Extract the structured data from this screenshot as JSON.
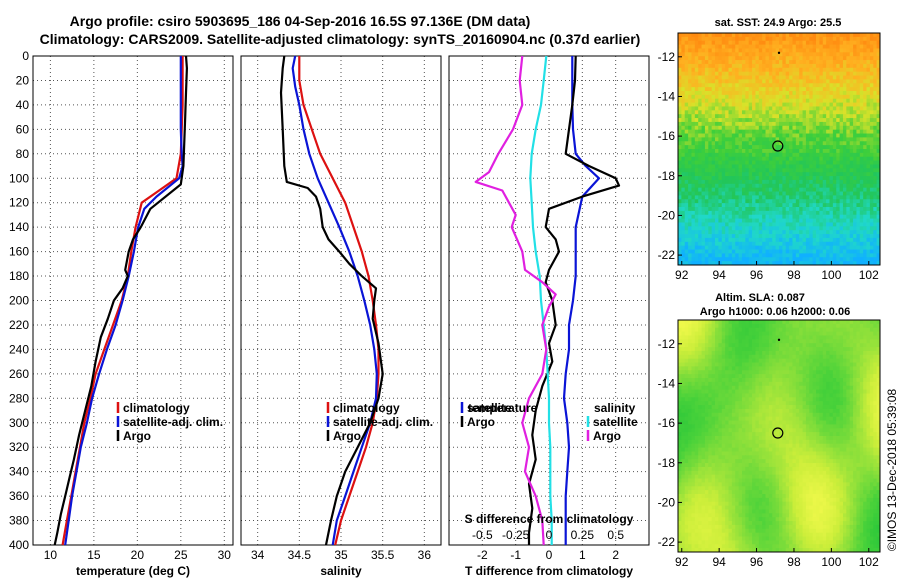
{
  "header": {
    "title_line1": "Argo profile: csiro 5903695_186 04-Sep-2016 16.5S 97.136E (DM data)",
    "title_line2": "Climatology: CARS2009. Satellite-adjusted climatology: synTS_20160904.nc (0.37d earlier)"
  },
  "colors": {
    "climatology": "#dd1111",
    "satellite": "#0a14d6",
    "argo": "#000000",
    "s_satellite": "#22e0e6",
    "s_argo": "#e020e0"
  },
  "depth_axis": {
    "ylim": [
      0,
      400
    ],
    "ticks": [
      0,
      20,
      40,
      60,
      80,
      100,
      120,
      140,
      160,
      180,
      200,
      220,
      240,
      260,
      280,
      300,
      320,
      340,
      360,
      380,
      400
    ]
  },
  "chart_data": [
    {
      "type": "line",
      "name": "temperature-panel",
      "xlabel": "temperature (deg C)",
      "xlim": [
        8,
        31
      ],
      "xticks": [
        10,
        15,
        20,
        25,
        30
      ],
      "legend": [
        "climatology",
        "satellite-adj. clim.",
        "Argo"
      ],
      "series": [
        {
          "name": "climatology",
          "points": [
            [
              25.2,
              0
            ],
            [
              25.2,
              20
            ],
            [
              25.2,
              40
            ],
            [
              25.1,
              60
            ],
            [
              25.0,
              80
            ],
            [
              24.5,
              100
            ],
            [
              22.5,
              110
            ],
            [
              20.5,
              120
            ],
            [
              19.8,
              140
            ],
            [
              19.3,
              160
            ],
            [
              18.9,
              180
            ],
            [
              18.2,
              200
            ],
            [
              17.2,
              220
            ],
            [
              16.2,
              240
            ],
            [
              15.2,
              260
            ],
            [
              14.6,
              280
            ],
            [
              13.9,
              300
            ],
            [
              13.4,
              320
            ],
            [
              12.9,
              340
            ],
            [
              12.4,
              360
            ],
            [
              11.9,
              380
            ],
            [
              11.4,
              400
            ]
          ]
        },
        {
          "name": "satellite-adj. clim.",
          "points": [
            [
              25.0,
              0
            ],
            [
              25.0,
              20
            ],
            [
              25.0,
              40
            ],
            [
              25.0,
              60
            ],
            [
              25.1,
              80
            ],
            [
              25.2,
              90
            ],
            [
              24.8,
              100
            ],
            [
              22.2,
              115
            ],
            [
              20.8,
              125
            ],
            [
              20.1,
              140
            ],
            [
              19.6,
              160
            ],
            [
              19.0,
              180
            ],
            [
              18.3,
              200
            ],
            [
              17.5,
              220
            ],
            [
              16.5,
              240
            ],
            [
              15.6,
              260
            ],
            [
              14.8,
              280
            ],
            [
              14.2,
              300
            ],
            [
              13.5,
              320
            ],
            [
              13.0,
              340
            ],
            [
              12.5,
              360
            ],
            [
              12.1,
              380
            ],
            [
              11.7,
              400
            ]
          ]
        },
        {
          "name": "Argo",
          "points": [
            [
              25.6,
              0
            ],
            [
              25.7,
              10
            ],
            [
              25.6,
              30
            ],
            [
              25.5,
              50
            ],
            [
              25.4,
              70
            ],
            [
              25.3,
              90
            ],
            [
              25.0,
              105
            ],
            [
              21.5,
              125
            ],
            [
              20.4,
              140
            ],
            [
              19.5,
              150
            ],
            [
              19.0,
              160
            ],
            [
              18.6,
              175
            ],
            [
              18.9,
              180
            ],
            [
              18.3,
              190
            ],
            [
              17.3,
              200
            ],
            [
              16.6,
              215
            ],
            [
              15.8,
              230
            ],
            [
              15.2,
              250
            ],
            [
              14.7,
              270
            ],
            [
              14.0,
              290
            ],
            [
              13.3,
              310
            ],
            [
              12.7,
              330
            ],
            [
              12.2,
              345
            ],
            [
              11.7,
              360
            ],
            [
              11.2,
              375
            ],
            [
              10.8,
              390
            ],
            [
              10.5,
              400
            ]
          ]
        }
      ]
    },
    {
      "type": "line",
      "name": "salinity-panel",
      "xlabel": "salinity",
      "xlim": [
        33.8,
        36.2
      ],
      "xticks": [
        34,
        34.5,
        35,
        35.5,
        36
      ],
      "legend": [
        "climatology",
        "satellite-adj. clim.",
        "Argo"
      ],
      "series": [
        {
          "name": "climatology",
          "points": [
            [
              34.5,
              0
            ],
            [
              34.5,
              20
            ],
            [
              34.55,
              40
            ],
            [
              34.65,
              60
            ],
            [
              34.75,
              80
            ],
            [
              34.9,
              100
            ],
            [
              35.05,
              120
            ],
            [
              35.15,
              140
            ],
            [
              35.25,
              160
            ],
            [
              35.33,
              180
            ],
            [
              35.38,
              200
            ],
            [
              35.42,
              220
            ],
            [
              35.45,
              240
            ],
            [
              35.45,
              260
            ],
            [
              35.43,
              280
            ],
            [
              35.38,
              300
            ],
            [
              35.3,
              320
            ],
            [
              35.2,
              340
            ],
            [
              35.1,
              360
            ],
            [
              35.0,
              380
            ],
            [
              34.93,
              400
            ]
          ]
        },
        {
          "name": "satellite-adj. clim.",
          "points": [
            [
              34.45,
              0
            ],
            [
              34.42,
              10
            ],
            [
              34.45,
              25
            ],
            [
              34.5,
              40
            ],
            [
              34.55,
              60
            ],
            [
              34.62,
              80
            ],
            [
              34.72,
              100
            ],
            [
              34.85,
              120
            ],
            [
              34.98,
              140
            ],
            [
              35.1,
              160
            ],
            [
              35.2,
              180
            ],
            [
              35.28,
              200
            ],
            [
              35.35,
              220
            ],
            [
              35.4,
              240
            ],
            [
              35.43,
              260
            ],
            [
              35.42,
              280
            ],
            [
              35.35,
              300
            ],
            [
              35.25,
              320
            ],
            [
              35.15,
              340
            ],
            [
              35.05,
              360
            ],
            [
              34.95,
              380
            ],
            [
              34.9,
              400
            ]
          ]
        },
        {
          "name": "Argo",
          "points": [
            [
              34.32,
              0
            ],
            [
              34.3,
              10
            ],
            [
              34.28,
              30
            ],
            [
              34.3,
              60
            ],
            [
              34.32,
              90
            ],
            [
              34.35,
              103
            ],
            [
              34.6,
              108
            ],
            [
              34.7,
              115
            ],
            [
              34.75,
              125
            ],
            [
              34.78,
              140
            ],
            [
              34.85,
              150
            ],
            [
              34.98,
              160
            ],
            [
              35.1,
              170
            ],
            [
              35.25,
              180
            ],
            [
              35.42,
              190
            ],
            [
              35.4,
              200
            ],
            [
              35.38,
              215
            ],
            [
              35.45,
              235
            ],
            [
              35.48,
              250
            ],
            [
              35.5,
              260
            ],
            [
              35.45,
              280
            ],
            [
              35.35,
              300
            ],
            [
              35.2,
              320
            ],
            [
              35.05,
              340
            ],
            [
              34.95,
              360
            ],
            [
              34.88,
              380
            ],
            [
              34.82,
              400
            ]
          ]
        }
      ]
    },
    {
      "type": "line",
      "name": "difference-panel",
      "xlabel": "T difference from climatology",
      "xlim": [
        -3,
        3
      ],
      "xticks": [
        -2,
        -1,
        0,
        1,
        2
      ],
      "s_axis_title": "S difference from climatology",
      "s_xticks": [
        -0.5,
        -0.25,
        0,
        0.25,
        0.5
      ],
      "legend_temperature": [
        "temperature",
        "satellite",
        "Argo"
      ],
      "legend_salinity": [
        "salinity",
        "satellite",
        "Argo"
      ],
      "series": [
        {
          "name": "T satellite",
          "points": [
            [
              0.7,
              0
            ],
            [
              0.7,
              40
            ],
            [
              0.72,
              60
            ],
            [
              0.8,
              80
            ],
            [
              1.1,
              90
            ],
            [
              1.5,
              100
            ],
            [
              1.0,
              115
            ],
            [
              0.8,
              140
            ],
            [
              0.8,
              160
            ],
            [
              0.8,
              180
            ],
            [
              0.72,
              200
            ],
            [
              0.6,
              220
            ],
            [
              0.6,
              240
            ],
            [
              0.5,
              260
            ],
            [
              0.45,
              280
            ],
            [
              0.55,
              300
            ],
            [
              0.6,
              320
            ],
            [
              0.55,
              340
            ],
            [
              0.5,
              360
            ],
            [
              0.5,
              380
            ],
            [
              0.5,
              400
            ]
          ]
        },
        {
          "name": "T Argo",
          "points": [
            [
              0.8,
              0
            ],
            [
              0.78,
              20
            ],
            [
              0.7,
              40
            ],
            [
              0.6,
              60
            ],
            [
              0.5,
              80
            ],
            [
              1.2,
              90
            ],
            [
              2.0,
              100
            ],
            [
              2.1,
              106
            ],
            [
              1.0,
              115
            ],
            [
              0.0,
              125
            ],
            [
              -0.1,
              140
            ],
            [
              0.2,
              150
            ],
            [
              0.3,
              160
            ],
            [
              0.0,
              175
            ],
            [
              -0.1,
              185
            ],
            [
              0.1,
              200
            ],
            [
              0.2,
              220
            ],
            [
              0.0,
              235
            ],
            [
              0.1,
              250
            ],
            [
              -0.2,
              270
            ],
            [
              -0.4,
              290
            ],
            [
              -0.5,
              310
            ],
            [
              -0.4,
              330
            ],
            [
              -0.6,
              350
            ],
            [
              -0.5,
              370
            ],
            [
              -0.6,
              390
            ],
            [
              -0.6,
              400
            ]
          ]
        },
        {
          "name": "S satellite",
          "points": [
            [
              -0.02,
              0
            ],
            [
              -0.04,
              20
            ],
            [
              -0.06,
              40
            ],
            [
              -0.1,
              60
            ],
            [
              -0.13,
              80
            ],
            [
              -0.14,
              100
            ],
            [
              -0.13,
              120
            ],
            [
              -0.12,
              140
            ],
            [
              -0.1,
              160
            ],
            [
              -0.07,
              180
            ],
            [
              -0.06,
              200
            ],
            [
              -0.04,
              220
            ],
            [
              -0.02,
              240
            ],
            [
              -0.01,
              260
            ],
            [
              0.0,
              280
            ],
            [
              0.0,
              300
            ],
            [
              0.01,
              320
            ],
            [
              0.01,
              340
            ],
            [
              0.01,
              360
            ],
            [
              0.02,
              380
            ],
            [
              0.02,
              400
            ]
          ]
        },
        {
          "name": "S Argo",
          "points": [
            [
              -0.2,
              0
            ],
            [
              -0.22,
              20
            ],
            [
              -0.2,
              40
            ],
            [
              -0.27,
              60
            ],
            [
              -0.38,
              80
            ],
            [
              -0.45,
              95
            ],
            [
              -0.55,
              103
            ],
            [
              -0.35,
              110
            ],
            [
              -0.3,
              120
            ],
            [
              -0.25,
              130
            ],
            [
              -0.28,
              140
            ],
            [
              -0.2,
              160
            ],
            [
              -0.18,
              175
            ],
            [
              -0.05,
              185
            ],
            [
              0.05,
              195
            ],
            [
              0.0,
              205
            ],
            [
              -0.05,
              220
            ],
            [
              -0.02,
              240
            ],
            [
              -0.05,
              260
            ],
            [
              -0.15,
              280
            ],
            [
              -0.2,
              300
            ],
            [
              -0.15,
              320
            ],
            [
              -0.18,
              340
            ],
            [
              -0.1,
              360
            ],
            [
              -0.05,
              380
            ],
            [
              -0.04,
              400
            ]
          ]
        }
      ]
    },
    {
      "type": "heatmap",
      "name": "sst-map",
      "title": "sat. SST: 24.9 Argo: 25.5",
      "xticks": [
        92,
        94,
        96,
        98,
        100,
        102
      ],
      "yticks": [
        -12,
        -14,
        -16,
        -18,
        -20,
        -22
      ],
      "xlim": [
        91.8,
        102.6
      ],
      "ylim": [
        -22.5,
        -10.8
      ],
      "argo_marker": [
        97.136,
        -16.5
      ]
    },
    {
      "type": "heatmap",
      "name": "sla-map",
      "title_line1": "Altim. SLA: 0.087",
      "title_line2": "Argo h1000: 0.06 h2000: 0.06",
      "xticks": [
        92,
        94,
        96,
        98,
        100,
        102
      ],
      "yticks": [
        -12,
        -14,
        -16,
        -18,
        -20,
        -22
      ],
      "xlim": [
        91.8,
        102.6
      ],
      "ylim": [
        -22.5,
        -10.8
      ],
      "argo_marker": [
        97.136,
        -16.5
      ]
    }
  ],
  "footer": {
    "credit": "©IMOS 13-Dec-2018 05:39:08"
  }
}
